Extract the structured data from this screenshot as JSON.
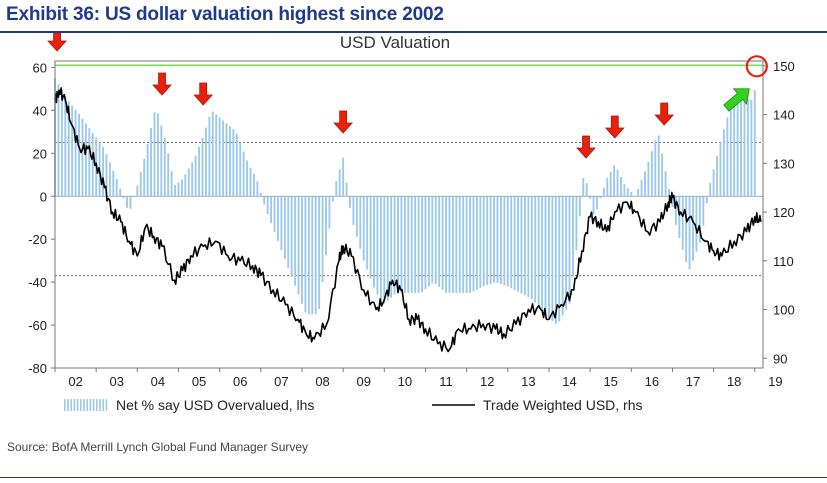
{
  "header": {
    "exhibit_title": "Exhibit 36: US dollar valuation highest since 2002"
  },
  "source": "Source:  BofA Merrill Lynch Global Fund Manager Survey",
  "colors": {
    "bars": "#9cc8ec",
    "line": "#000000",
    "threshold_line": "#7ed957",
    "arrow_red": "#e6210c",
    "arrow_green": "#33d11d",
    "circle": "#e6210c",
    "title": "#1f3a8a"
  },
  "chart_data": {
    "type": "bar+line",
    "title": "USD Valuation",
    "x_tick_labels": [
      "02",
      "03",
      "04",
      "05",
      "06",
      "07",
      "08",
      "09",
      "10",
      "11",
      "12",
      "13",
      "14",
      "15",
      "16",
      "17",
      "18",
      "19"
    ],
    "x_range": [
      2002,
      2019.2
    ],
    "left_axis": {
      "ticks": [
        60,
        40,
        20,
        0,
        -20,
        -40,
        -60,
        -80
      ],
      "range": [
        -80,
        63
      ]
    },
    "right_axis": {
      "ticks": [
        150,
        140,
        130,
        120,
        110,
        100,
        90
      ],
      "range": [
        88,
        151
      ]
    },
    "reference_lines": [
      {
        "axis": "left",
        "value": 25,
        "style": "dashed"
      },
      {
        "axis": "left",
        "value": -37,
        "style": "dashed"
      },
      {
        "axis": "left",
        "value": 61,
        "style": "solid-green"
      }
    ],
    "series": [
      {
        "name": "Net % say USD Overvalued, lhs",
        "kind": "bars",
        "axis": "left",
        "points": [
          [
            2002.0,
            55
          ],
          [
            2002.3,
            45
          ],
          [
            2002.6,
            38
          ],
          [
            2002.9,
            30
          ],
          [
            2003.2,
            22
          ],
          [
            2003.5,
            8
          ],
          [
            2003.8,
            -8
          ],
          [
            2004.0,
            5
          ],
          [
            2004.2,
            20
          ],
          [
            2004.45,
            42
          ],
          [
            2004.7,
            25
          ],
          [
            2004.9,
            5
          ],
          [
            2005.1,
            8
          ],
          [
            2005.4,
            18
          ],
          [
            2005.6,
            28
          ],
          [
            2005.8,
            40
          ],
          [
            2006.1,
            35
          ],
          [
            2006.4,
            30
          ],
          [
            2006.7,
            15
          ],
          [
            2006.9,
            8
          ],
          [
            2007.1,
            -5
          ],
          [
            2007.4,
            -20
          ],
          [
            2007.7,
            -35
          ],
          [
            2007.9,
            -45
          ],
          [
            2008.1,
            -55
          ],
          [
            2008.4,
            -55
          ],
          [
            2008.6,
            -25
          ],
          [
            2008.8,
            5
          ],
          [
            2009.0,
            18
          ],
          [
            2009.2,
            -10
          ],
          [
            2009.5,
            -30
          ],
          [
            2009.8,
            -45
          ],
          [
            2010.0,
            -50
          ],
          [
            2010.3,
            -45
          ],
          [
            2010.6,
            -45
          ],
          [
            2010.9,
            -45
          ],
          [
            2011.2,
            -40
          ],
          [
            2011.5,
            -45
          ],
          [
            2011.8,
            -45
          ],
          [
            2012.1,
            -45
          ],
          [
            2012.4,
            -42
          ],
          [
            2012.7,
            -40
          ],
          [
            2013.0,
            -42
          ],
          [
            2013.3,
            -45
          ],
          [
            2013.6,
            -48
          ],
          [
            2013.9,
            -55
          ],
          [
            2014.2,
            -60
          ],
          [
            2014.5,
            -50
          ],
          [
            2014.7,
            -20
          ],
          [
            2014.85,
            12
          ],
          [
            2015.1,
            -10
          ],
          [
            2015.4,
            8
          ],
          [
            2015.6,
            15
          ],
          [
            2015.85,
            5
          ],
          [
            2016.1,
            0
          ],
          [
            2016.4,
            15
          ],
          [
            2016.65,
            30
          ],
          [
            2016.9,
            5
          ],
          [
            2017.1,
            -15
          ],
          [
            2017.4,
            -35
          ],
          [
            2017.7,
            -20
          ],
          [
            2017.9,
            5
          ],
          [
            2018.1,
            20
          ],
          [
            2018.3,
            35
          ],
          [
            2018.5,
            45
          ],
          [
            2018.7,
            48
          ],
          [
            2018.9,
            44
          ],
          [
            2019.05,
            52
          ]
        ]
      },
      {
        "name": "Trade Weighted USD, rhs",
        "kind": "line",
        "axis": "right",
        "points": [
          [
            2002.0,
            143
          ],
          [
            2002.1,
            145
          ],
          [
            2002.25,
            143
          ],
          [
            2002.4,
            138
          ],
          [
            2002.6,
            133
          ],
          [
            2002.8,
            133
          ],
          [
            2003.0,
            130
          ],
          [
            2003.2,
            125
          ],
          [
            2003.4,
            120
          ],
          [
            2003.6,
            118
          ],
          [
            2003.8,
            114
          ],
          [
            2004.0,
            111
          ],
          [
            2004.2,
            117
          ],
          [
            2004.4,
            115
          ],
          [
            2004.6,
            113
          ],
          [
            2004.9,
            106
          ],
          [
            2005.1,
            108
          ],
          [
            2005.3,
            111
          ],
          [
            2005.6,
            113
          ],
          [
            2005.9,
            114
          ],
          [
            2006.2,
            111
          ],
          [
            2006.5,
            110
          ],
          [
            2006.8,
            109
          ],
          [
            2007.0,
            107
          ],
          [
            2007.3,
            104
          ],
          [
            2007.6,
            101
          ],
          [
            2007.9,
            98
          ],
          [
            2008.1,
            95
          ],
          [
            2008.3,
            94
          ],
          [
            2008.6,
            97
          ],
          [
            2008.9,
            110
          ],
          [
            2009.0,
            113
          ],
          [
            2009.2,
            111
          ],
          [
            2009.5,
            104
          ],
          [
            2009.8,
            100
          ],
          [
            2010.0,
            102
          ],
          [
            2010.2,
            106
          ],
          [
            2010.4,
            104
          ],
          [
            2010.6,
            98
          ],
          [
            2010.8,
            98
          ],
          [
            2011.0,
            96
          ],
          [
            2011.3,
            93
          ],
          [
            2011.6,
            92
          ],
          [
            2011.8,
            96
          ],
          [
            2012.1,
            96
          ],
          [
            2012.4,
            97
          ],
          [
            2012.7,
            96
          ],
          [
            2012.9,
            95
          ],
          [
            2013.2,
            97
          ],
          [
            2013.5,
            100
          ],
          [
            2013.8,
            100
          ],
          [
            2014.0,
            98
          ],
          [
            2014.3,
            101
          ],
          [
            2014.6,
            104
          ],
          [
            2014.8,
            112
          ],
          [
            2015.0,
            119
          ],
          [
            2015.2,
            118
          ],
          [
            2015.4,
            116
          ],
          [
            2015.6,
            120
          ],
          [
            2015.9,
            122
          ],
          [
            2016.1,
            120
          ],
          [
            2016.4,
            116
          ],
          [
            2016.7,
            118
          ],
          [
            2016.9,
            122
          ],
          [
            2017.0,
            123
          ],
          [
            2017.2,
            120
          ],
          [
            2017.5,
            118
          ],
          [
            2017.8,
            114
          ],
          [
            2018.0,
            112
          ],
          [
            2018.2,
            111
          ],
          [
            2018.5,
            114
          ],
          [
            2018.8,
            116
          ],
          [
            2019.0,
            119
          ],
          [
            2019.15,
            118
          ]
        ]
      }
    ],
    "legend": {
      "placement": "bottom"
    },
    "markers": {
      "red_arrows_down_at": [
        2002.05,
        2004.6,
        2005.6,
        2009.0,
        2014.9,
        2015.6,
        2016.8
      ],
      "green_arrow_up_at": 2018.6,
      "circle_at": 2019.05
    }
  }
}
